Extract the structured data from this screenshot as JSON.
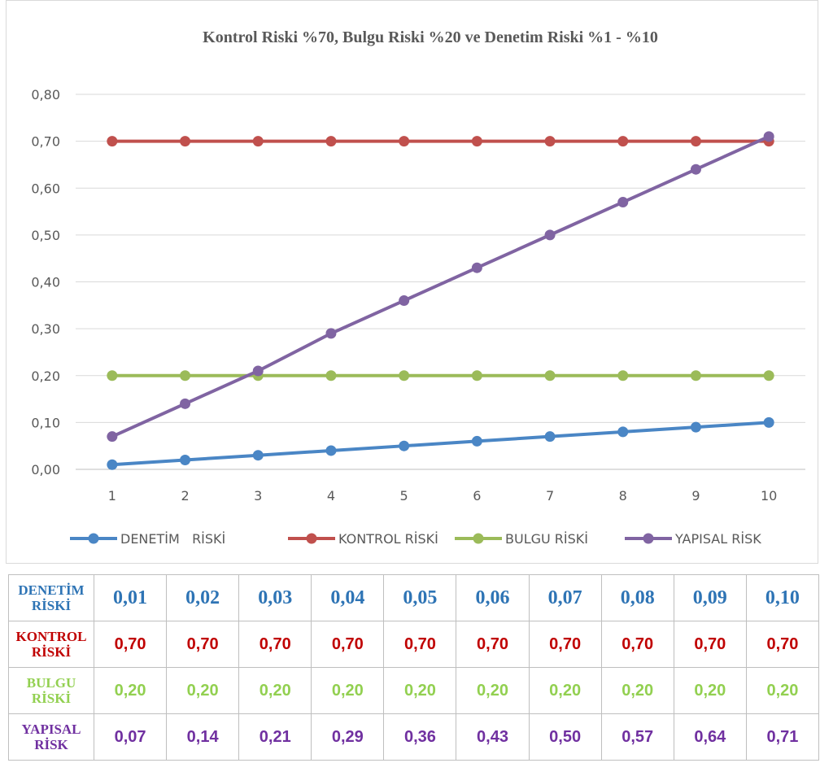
{
  "chart_data": {
    "type": "line",
    "title": "Kontrol Riski %70, Bulgu Riski %20 ve Denetim Riski %1 - %10",
    "xlabel": "",
    "ylabel": "",
    "categories": [
      "1",
      "2",
      "3",
      "4",
      "5",
      "6",
      "7",
      "8",
      "9",
      "10"
    ],
    "ylim": [
      0,
      0.8
    ],
    "yticks": [
      "0,00",
      "0,10",
      "0,20",
      "0,30",
      "0,40",
      "0,50",
      "0,60",
      "0,70",
      "0,80"
    ],
    "grid": true,
    "legend": "bottom",
    "series": [
      {
        "name": "DENETİM   RİSKİ",
        "color": "#4a86c5",
        "values": [
          0.01,
          0.02,
          0.03,
          0.04,
          0.05,
          0.06,
          0.07,
          0.08,
          0.09,
          0.1
        ]
      },
      {
        "name": "KONTROL RİSKİ",
        "color": "#c0504d",
        "values": [
          0.7,
          0.7,
          0.7,
          0.7,
          0.7,
          0.7,
          0.7,
          0.7,
          0.7,
          0.7
        ]
      },
      {
        "name": "BULGU RİSKİ",
        "color": "#9bbb59",
        "values": [
          0.2,
          0.2,
          0.2,
          0.2,
          0.2,
          0.2,
          0.2,
          0.2,
          0.2,
          0.2
        ]
      },
      {
        "name": "YAPISAL RİSK",
        "color": "#8064a2",
        "values": [
          0.07,
          0.14,
          0.21,
          0.29,
          0.36,
          0.43,
          0.5,
          0.57,
          0.64,
          0.71
        ]
      }
    ]
  },
  "table": {
    "rows": [
      {
        "label_line1": "DENETİM",
        "label_line2": "RİSKİ",
        "color": "#2e74b5",
        "cells": [
          "0,01",
          "0,02",
          "0,03",
          "0,04",
          "0,05",
          "0,06",
          "0,07",
          "0,08",
          "0,09",
          "0,10"
        ]
      },
      {
        "label_line1": "KONTROL",
        "label_line2": "RİSKİ",
        "color": "#c00000",
        "cells": [
          "0,70",
          "0,70",
          "0,70",
          "0,70",
          "0,70",
          "0,70",
          "0,70",
          "0,70",
          "0,70",
          "0,70"
        ]
      },
      {
        "label_line1": "BULGU",
        "label_line2": "RİSKİ",
        "color": "#92d050",
        "cells": [
          "0,20",
          "0,20",
          "0,20",
          "0,20",
          "0,20",
          "0,20",
          "0,20",
          "0,20",
          "0,20",
          "0,20"
        ]
      },
      {
        "label_line1": "YAPISAL",
        "label_line2": "RİSK",
        "color": "#7030a0",
        "cells": [
          "0,07",
          "0,14",
          "0,21",
          "0,29",
          "0,36",
          "0,43",
          "0,50",
          "0,57",
          "0,64",
          "0,71"
        ]
      }
    ]
  }
}
